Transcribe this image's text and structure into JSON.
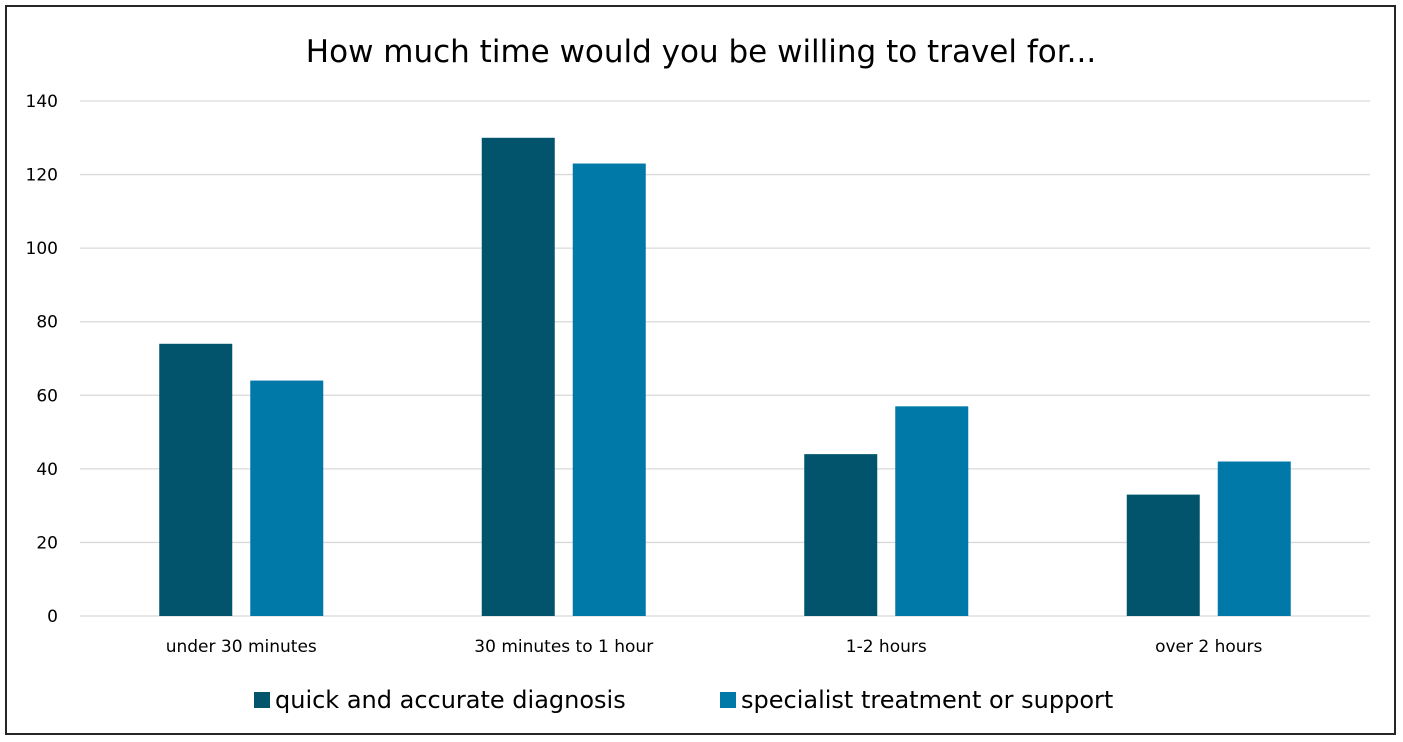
{
  "chart_data": {
    "type": "bar",
    "title": "How much time would you be willing to travel for...",
    "xlabel": "",
    "ylabel": "",
    "categories": [
      "under 30 minutes",
      "30 minutes to 1 hour",
      "1-2 hours",
      "over 2 hours"
    ],
    "series": [
      {
        "name": "quick and accurate diagnosis",
        "values": [
          74,
          130,
          44,
          33
        ],
        "color": "#01546b"
      },
      {
        "name": "specialist treatment or support",
        "values": [
          64,
          123,
          57,
          42
        ],
        "color": "#0179a8"
      }
    ],
    "ylim": [
      0,
      140
    ],
    "yticks": [
      "0",
      "20",
      "40",
      "60",
      "80",
      "100",
      "120",
      "140"
    ],
    "grid": true,
    "gridColor": "#d9d9d9",
    "legend": "bottom"
  }
}
